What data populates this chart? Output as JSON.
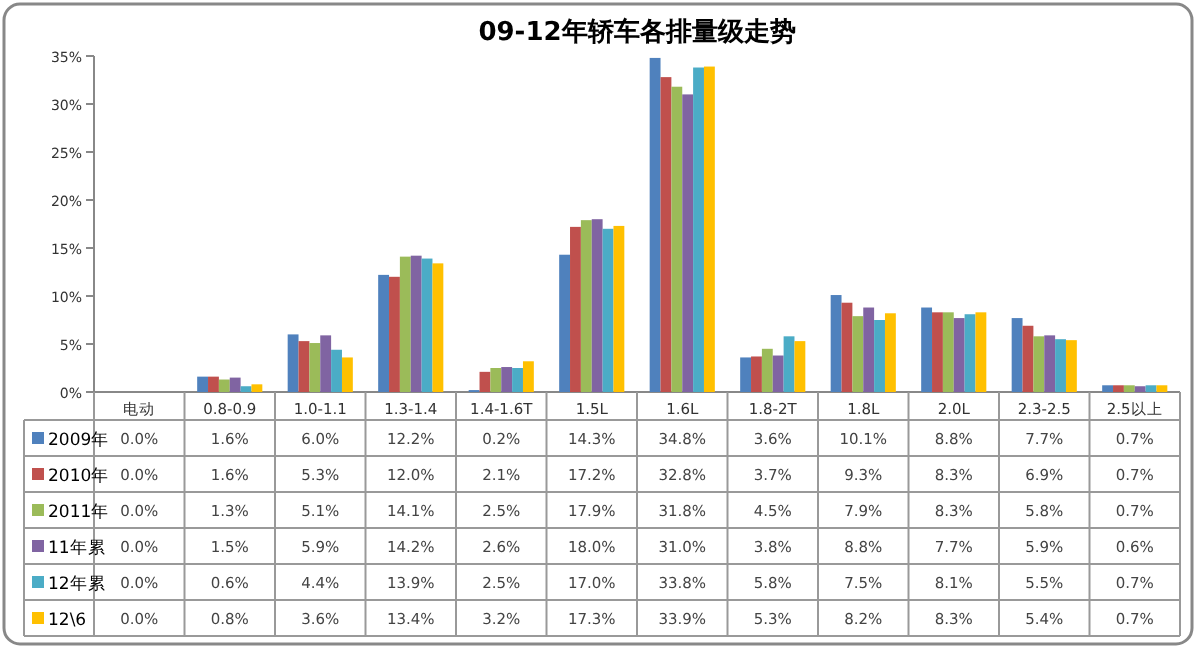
{
  "chart_data": {
    "type": "bar",
    "title": "09-12年轿车各排量级走势",
    "categories": [
      "电动",
      "0.8-0.9",
      "1.0-1.1",
      "1.3-1.4",
      "1.4-1.6T",
      "1.5L",
      "1.6L",
      "1.8-2T",
      "1.8L",
      "2.0L",
      "2.3-2.5",
      "2.5以上"
    ],
    "series": [
      {
        "name": "2009年",
        "color": "#4f81bd",
        "values": [
          0.0,
          1.6,
          6.0,
          12.2,
          0.2,
          14.3,
          34.8,
          3.6,
          10.1,
          8.8,
          7.7,
          0.7
        ],
        "value_labels": [
          "0.0%",
          "1.6%",
          "6.0%",
          "12.2%",
          "0.2%",
          "14.3%",
          "34.8%",
          "3.6%",
          "10.1%",
          "8.8%",
          "7.7%",
          "0.7%"
        ]
      },
      {
        "name": "2010年",
        "color": "#c0504d",
        "values": [
          0.0,
          1.6,
          5.3,
          12.0,
          2.1,
          17.2,
          32.8,
          3.7,
          9.3,
          8.3,
          6.9,
          0.7
        ],
        "value_labels": [
          "0.0%",
          "1.6%",
          "5.3%",
          "12.0%",
          "2.1%",
          "17.2%",
          "32.8%",
          "3.7%",
          "9.3%",
          "8.3%",
          "6.9%",
          "0.7%"
        ]
      },
      {
        "name": "2011年",
        "color": "#9bbb59",
        "values": [
          0.0,
          1.3,
          5.1,
          14.1,
          2.5,
          17.9,
          31.8,
          4.5,
          7.9,
          8.3,
          5.8,
          0.7
        ],
        "value_labels": [
          "0.0%",
          "1.3%",
          "5.1%",
          "14.1%",
          "2.5%",
          "17.9%",
          "31.8%",
          "4.5%",
          "7.9%",
          "8.3%",
          "5.8%",
          "0.7%"
        ]
      },
      {
        "name": "11年累",
        "color": "#8064a2",
        "values": [
          0.0,
          1.5,
          5.9,
          14.2,
          2.6,
          18.0,
          31.0,
          3.8,
          8.8,
          7.7,
          5.9,
          0.6
        ],
        "value_labels": [
          "0.0%",
          "1.5%",
          "5.9%",
          "14.2%",
          "2.6%",
          "18.0%",
          "31.0%",
          "3.8%",
          "8.8%",
          "7.7%",
          "5.9%",
          "0.6%"
        ]
      },
      {
        "name": "12年累",
        "color": "#4bacc6",
        "values": [
          0.0,
          0.6,
          4.4,
          13.9,
          2.5,
          17.0,
          33.8,
          5.8,
          7.5,
          8.1,
          5.5,
          0.7
        ],
        "value_labels": [
          "0.0%",
          "0.6%",
          "4.4%",
          "13.9%",
          "2.5%",
          "17.0%",
          "33.8%",
          "5.8%",
          "7.5%",
          "8.1%",
          "5.5%",
          "0.7%"
        ]
      },
      {
        "name": "12\\6",
        "color": "#ffc000",
        "values": [
          0.0,
          0.8,
          3.6,
          13.4,
          3.2,
          17.3,
          33.9,
          5.3,
          8.2,
          8.3,
          5.4,
          0.7
        ],
        "value_labels": [
          "0.0%",
          "0.8%",
          "3.6%",
          "13.4%",
          "3.2%",
          "17.3%",
          "33.9%",
          "5.3%",
          "8.2%",
          "8.3%",
          "5.4%",
          "0.7%"
        ]
      }
    ],
    "ylim": [
      0,
      35
    ],
    "yticks": [
      {
        "value": 0,
        "label": "0%"
      },
      {
        "value": 5,
        "label": "5%"
      },
      {
        "value": 10,
        "label": "10%"
      },
      {
        "value": 15,
        "label": "15%"
      },
      {
        "value": 20,
        "label": "20%"
      },
      {
        "value": 25,
        "label": "25%"
      },
      {
        "value": 30,
        "label": "30%"
      },
      {
        "value": 35,
        "label": "35%"
      }
    ],
    "legend": "bottom"
  }
}
